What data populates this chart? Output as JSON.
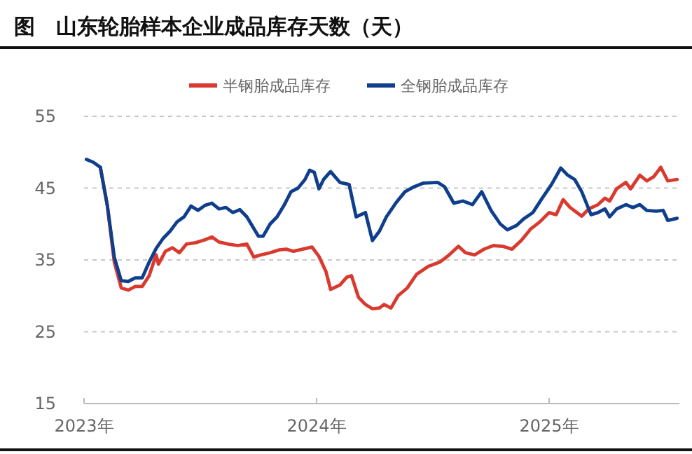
{
  "chart_data": {
    "type": "line",
    "title": "图　山东轮胎样本企业成品库存天数（天）",
    "legend": "top",
    "grid": "y",
    "line_style": "solid",
    "marker": "none",
    "xlim": [
      2023,
      2025.56
    ],
    "xticks": [
      {
        "value": 2023,
        "label": "2023年"
      },
      {
        "value": 2024,
        "label": "2024年"
      },
      {
        "value": 2025,
        "label": "2025年"
      }
    ],
    "ylim": [
      15,
      55
    ],
    "yticks": [
      15,
      25,
      35,
      45,
      55
    ],
    "series": [
      {
        "name": "半钢胎成品库存",
        "color": "#d93a2f",
        "x": [
          2023.07,
          2023.1,
          2023.13,
          2023.16,
          2023.19,
          2023.22,
          2023.25,
          2023.28,
          2023.31,
          2023.32,
          2023.35,
          2023.38,
          2023.41,
          2023.44,
          2023.48,
          2023.52,
          2023.55,
          2023.58,
          2023.62,
          2023.66,
          2023.7,
          2023.73,
          2023.76,
          2023.8,
          2023.84,
          2023.87,
          2023.9,
          2023.94,
          2023.98,
          2024.01,
          2024.04,
          2024.06,
          2024.1,
          2024.13,
          2024.15,
          2024.18,
          2024.21,
          2024.24,
          2024.27,
          2024.29,
          2024.32,
          2024.35,
          2024.39,
          2024.43,
          2024.48,
          2024.53,
          2024.57,
          2024.61,
          2024.64,
          2024.68,
          2024.72,
          2024.76,
          2024.8,
          2024.84,
          2024.88,
          2024.92,
          2024.96,
          2025.0,
          2025.03,
          2025.06,
          2025.09,
          2025.14,
          2025.17,
          2025.21,
          2025.24,
          2025.26,
          2025.29,
          2025.33,
          2025.35,
          2025.39,
          2025.42,
          2025.45,
          2025.48,
          2025.51,
          2025.55
        ],
        "values": [
          47.9,
          42.6,
          34.7,
          31.1,
          30.8,
          31.3,
          31.3,
          32.8,
          35.7,
          34.4,
          36.2,
          36.7,
          36.0,
          37.2,
          37.4,
          37.8,
          38.2,
          37.5,
          37.2,
          37.0,
          37.2,
          35.4,
          35.7,
          36.0,
          36.4,
          36.5,
          36.2,
          36.5,
          36.8,
          35.5,
          33.4,
          30.9,
          31.5,
          32.6,
          32.8,
          29.8,
          28.8,
          28.2,
          28.3,
          28.8,
          28.3,
          30.0,
          31.1,
          33.0,
          34.1,
          34.7,
          35.7,
          36.9,
          36.0,
          35.7,
          36.5,
          37.0,
          36.9,
          36.5,
          37.7,
          39.3,
          40.3,
          41.6,
          41.3,
          43.4,
          42.3,
          41.1,
          42.1,
          42.7,
          43.6,
          43.2,
          44.9,
          45.8,
          44.9,
          46.8,
          46.0,
          46.6,
          47.9,
          46.0,
          46.2
        ]
      },
      {
        "name": "全钢胎成品库存",
        "color": "#0f3f8c",
        "x": [
          2023.01,
          2023.04,
          2023.07,
          2023.1,
          2023.13,
          2023.16,
          2023.19,
          2023.22,
          2023.25,
          2023.28,
          2023.31,
          2023.34,
          2023.37,
          2023.4,
          2023.43,
          2023.46,
          2023.49,
          2023.52,
          2023.55,
          2023.58,
          2023.61,
          2023.64,
          2023.67,
          2023.7,
          2023.75,
          2023.77,
          2023.8,
          2023.83,
          2023.86,
          2023.89,
          2023.92,
          2023.95,
          2023.97,
          2023.99,
          2024.01,
          2024.03,
          2024.06,
          2024.1,
          2024.14,
          2024.17,
          2024.21,
          2024.24,
          2024.27,
          2024.3,
          2024.34,
          2024.38,
          2024.42,
          2024.46,
          2024.52,
          2024.55,
          2024.59,
          2024.63,
          2024.67,
          2024.71,
          2024.75,
          2024.79,
          2024.82,
          2024.86,
          2024.89,
          2024.93,
          2024.97,
          2025.01,
          2025.05,
          2025.08,
          2025.11,
          2025.14,
          2025.18,
          2025.21,
          2025.24,
          2025.26,
          2025.29,
          2025.33,
          2025.36,
          2025.39,
          2025.42,
          2025.46,
          2025.49,
          2025.51,
          2025.55
        ],
        "values": [
          49.0,
          48.6,
          47.9,
          42.6,
          35.4,
          32.1,
          32.0,
          32.5,
          32.5,
          34.7,
          36.6,
          38.0,
          39.0,
          40.3,
          41.0,
          42.5,
          41.9,
          42.6,
          42.9,
          42.1,
          42.3,
          41.6,
          42.0,
          41.0,
          38.3,
          38.3,
          40.0,
          41.0,
          42.6,
          44.5,
          45.0,
          46.2,
          47.5,
          47.2,
          44.9,
          46.2,
          47.3,
          45.8,
          45.5,
          41.0,
          41.6,
          37.7,
          39.0,
          41.0,
          42.9,
          44.5,
          45.2,
          45.7,
          45.8,
          45.2,
          42.9,
          43.2,
          42.7,
          44.5,
          41.9,
          40.0,
          39.2,
          39.8,
          40.7,
          41.6,
          43.6,
          45.5,
          47.8,
          46.8,
          46.2,
          44.5,
          41.3,
          41.6,
          42.1,
          41.0,
          42.1,
          42.7,
          42.3,
          42.7,
          41.9,
          41.8,
          41.9,
          40.5,
          40.8
        ]
      }
    ]
  }
}
